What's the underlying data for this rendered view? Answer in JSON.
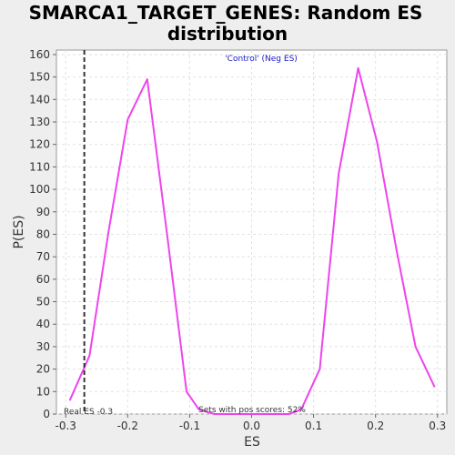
{
  "chart_data": {
    "type": "line",
    "title_line1": "SMARCA1_TARGET_GENES: Random ES",
    "title_line2": "distribution",
    "xlabel": "ES",
    "ylabel": "P(ES)",
    "xlim": [
      -0.315,
      0.315
    ],
    "ylim": [
      0,
      162
    ],
    "xticks": [
      -0.3,
      -0.2,
      -0.1,
      0.0,
      0.1,
      0.2,
      0.3
    ],
    "xtick_labels": [
      "-0.3",
      "-0.2",
      "-0.1",
      "0.0",
      "0.1",
      "0.2",
      "0.3"
    ],
    "yticks": [
      0,
      10,
      20,
      30,
      40,
      50,
      60,
      70,
      80,
      90,
      100,
      110,
      120,
      130,
      140,
      150,
      160
    ],
    "ytick_labels": [
      "0",
      "10",
      "20",
      "30",
      "40",
      "50",
      "60",
      "70",
      "80",
      "90",
      "100",
      "110",
      "120",
      "130",
      "140",
      "150",
      "160"
    ],
    "grid": true,
    "series": [
      {
        "color": "#ee44ee",
        "x": [
          -0.2935,
          -0.2615,
          -0.231,
          -0.2,
          -0.1685,
          -0.1365,
          -0.105,
          -0.085,
          -0.06,
          0.0,
          0.06,
          0.08,
          0.11,
          0.1405,
          0.172,
          0.2025,
          0.2345,
          0.2645,
          0.2955
        ],
        "y": [
          6,
          26,
          81,
          131,
          149,
          80,
          10,
          2,
          0,
          0,
          0,
          2,
          20,
          107,
          154,
          121,
          72,
          30,
          12
        ]
      }
    ],
    "real_es": -0.27,
    "real_es_label": "Real ES -0.3",
    "pos_scores_label": "Sets with pos scores: 52%",
    "legend_label": "'Control' (Neg ES)",
    "legend_position": "top-center"
  }
}
